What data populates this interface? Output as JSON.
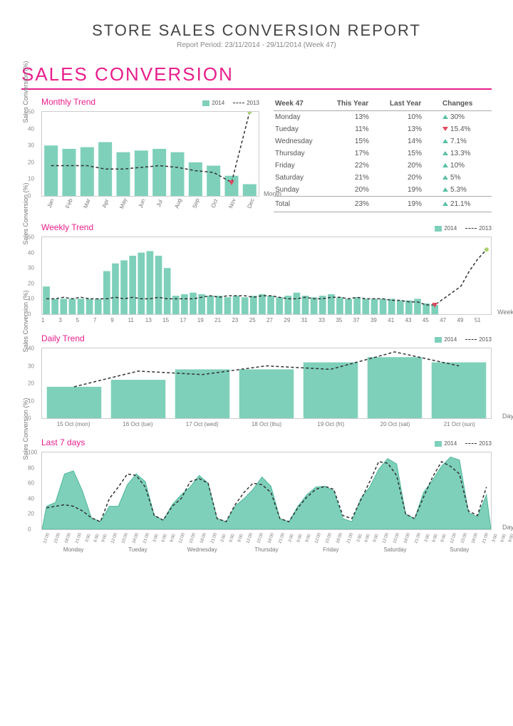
{
  "header": {
    "title": "STORE SALES CONVERSION REPORT",
    "subtitle": "Report Period: 23/11/2014 - 29/11/2014 (Week 47)"
  },
  "section": "SALES CONVERSION",
  "colors": {
    "bar": "#7ed0ba",
    "bar_fill": "#7ed0ba",
    "line": "#333333",
    "accent": "#e91e8c",
    "marker_red": "#e0485f",
    "marker_green": "#a8d26d"
  },
  "axis": {
    "ylabel": "Sales Conversion (%)"
  },
  "legend": {
    "y2014": "2014",
    "y2013": "2013"
  },
  "monthly": {
    "title": "Monthly Trend",
    "xlabel": "Month",
    "cats": [
      "Jan",
      "Feb",
      "Mar",
      "Apr",
      "May",
      "Jun",
      "Jul",
      "Aug",
      "Sep",
      "Oct",
      "Nov",
      "Dec"
    ],
    "bars": [
      30,
      28,
      29,
      32,
      26,
      27,
      28,
      26,
      20,
      18,
      12,
      7
    ],
    "line": [
      18,
      18,
      18,
      16,
      16,
      17,
      18,
      17,
      15,
      14,
      8,
      50
    ],
    "ymax": 50,
    "ystep": 10
  },
  "table": {
    "head": [
      "Week 47",
      "This Year",
      "Last Year",
      "Changes"
    ],
    "rows": [
      [
        "Monday",
        "13%",
        "10%",
        "up",
        "30%"
      ],
      [
        "Tueday",
        "11%",
        "13%",
        "dn",
        "15.4%"
      ],
      [
        "Wednesday",
        "15%",
        "14%",
        "up",
        "7.1%"
      ],
      [
        "Thursday",
        "17%",
        "15%",
        "up",
        "13.3%"
      ],
      [
        "Friday",
        "22%",
        "20%",
        "up",
        "10%"
      ],
      [
        "Saturday",
        "21%",
        "20%",
        "up",
        "5%"
      ],
      [
        "Sunday",
        "20%",
        "19%",
        "up",
        "5.3%"
      ]
    ],
    "total": [
      "Total",
      "23%",
      "19%",
      "up",
      "21.1%"
    ]
  },
  "weekly": {
    "title": "Weekly Trend",
    "xlabel": "Week",
    "bars": [
      18,
      10,
      10,
      10,
      10,
      10,
      10,
      28,
      33,
      35,
      38,
      40,
      41,
      38,
      30,
      12,
      13,
      14,
      13,
      12,
      12,
      11,
      12,
      11,
      12,
      13,
      12,
      11,
      12,
      14,
      12,
      11,
      12,
      13,
      11,
      10,
      11,
      10,
      10,
      10,
      10,
      9,
      9,
      10,
      7,
      6,
      0,
      0,
      0,
      0,
      0,
      0
    ],
    "line": [
      10,
      10,
      11,
      10,
      11,
      10,
      10,
      10,
      11,
      10,
      11,
      10,
      10,
      11,
      10,
      10,
      10,
      10,
      11,
      12,
      11,
      12,
      12,
      12,
      11,
      12,
      12,
      11,
      10,
      10,
      11,
      10,
      10,
      11,
      11,
      10,
      11,
      10,
      10,
      10,
      9,
      9,
      8,
      8,
      6,
      6,
      10,
      14,
      18,
      28,
      36,
      42
    ],
    "xticks": [
      "1",
      "3",
      "5",
      "7",
      "9",
      "11",
      "13",
      "15",
      "17",
      "19",
      "21",
      "23",
      "25",
      "27",
      "29",
      "31",
      "33",
      "35",
      "37",
      "39",
      "41",
      "43",
      "45",
      "47",
      "49",
      "51"
    ],
    "ymax": 50,
    "ystep": 10,
    "marker_red_idx": 45,
    "marker_green_idx": 51
  },
  "daily": {
    "title": "Daily Trend",
    "xlabel": "Day",
    "cats": [
      "15 Oct (mon)",
      "16 Oct (tue)",
      "17 Oct (wed)",
      "18 Oct (thu)",
      "19 Oct (fri)",
      "20 Oct (sat)",
      "21 Oct (sun)"
    ],
    "bars": [
      18,
      22,
      28,
      28,
      32,
      35,
      32
    ],
    "line": [
      18,
      27,
      25,
      30,
      28,
      38,
      30
    ],
    "ymax": 40,
    "ystep": 10
  },
  "last7": {
    "title": "Last 7 days",
    "xlabel": "Day",
    "days": [
      "Monday",
      "Tueday",
      "Wednesday",
      "Thursday",
      "Friday",
      "Saturday",
      "Sunday"
    ],
    "hours": [
      "12:00",
      "15:00",
      "18:00",
      "21:00",
      "3:00",
      "6:00",
      "9:00"
    ],
    "area": [
      30,
      35,
      72,
      76,
      50,
      15,
      10,
      30,
      30,
      58,
      72,
      62,
      18,
      12,
      32,
      45,
      55,
      70,
      60,
      14,
      10,
      30,
      40,
      52,
      68,
      56,
      14,
      10,
      30,
      45,
      55,
      56,
      50,
      14,
      10,
      40,
      55,
      78,
      92,
      85,
      20,
      14,
      48,
      64,
      82,
      94,
      90,
      22,
      16,
      45
    ],
    "line": [
      28,
      30,
      32,
      30,
      24,
      15,
      10,
      40,
      55,
      72,
      70,
      55,
      18,
      12,
      30,
      40,
      62,
      66,
      60,
      14,
      10,
      32,
      48,
      60,
      58,
      48,
      14,
      10,
      28,
      42,
      52,
      56,
      52,
      18,
      14,
      38,
      62,
      88,
      86,
      70,
      20,
      14,
      42,
      68,
      88,
      82,
      72,
      24,
      18,
      55
    ],
    "ymax": 100,
    "ystep": 20
  }
}
